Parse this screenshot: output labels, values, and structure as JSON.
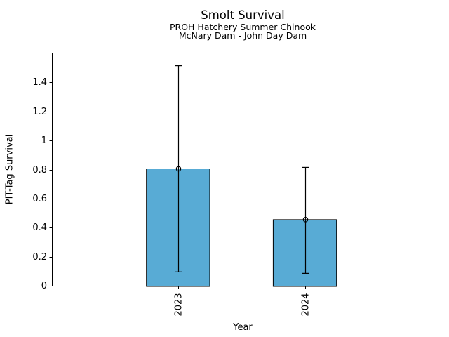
{
  "chart_data": {
    "type": "bar",
    "title": "Smolt Survival",
    "subtitle": [
      "PROH Hatchery Summer Chinook",
      "McNary Dam - John Day Dam"
    ],
    "xlabel": "Year",
    "ylabel": "PIT-Tag Survival",
    "categories": [
      "2023",
      "2024"
    ],
    "values": [
      0.81,
      0.46
    ],
    "error_low": [
      0.1,
      0.09
    ],
    "error_high": [
      1.52,
      0.82
    ],
    "bar_positions": [
      0,
      1
    ],
    "bar_width": 0.5,
    "xlim": [
      -0.99,
      2.01
    ],
    "ylim": [
      0,
      1.61
    ],
    "yticks": [
      0,
      0.2,
      0.4,
      0.6,
      0.8,
      1.0,
      1.2,
      1.4
    ],
    "ytick_labels": [
      "0",
      "0.2",
      "0.4",
      "0.6",
      "0.8",
      "1",
      "1.2",
      "1.4"
    ],
    "xtick_label_rotation": 90,
    "grid": false,
    "legend": "none",
    "marker": "open-circle",
    "bar_color": "#58ABD5",
    "bar_edge_color": "#000000",
    "error_color": "#000000",
    "axis_color": "#000000",
    "background_color": "#ffffff"
  }
}
